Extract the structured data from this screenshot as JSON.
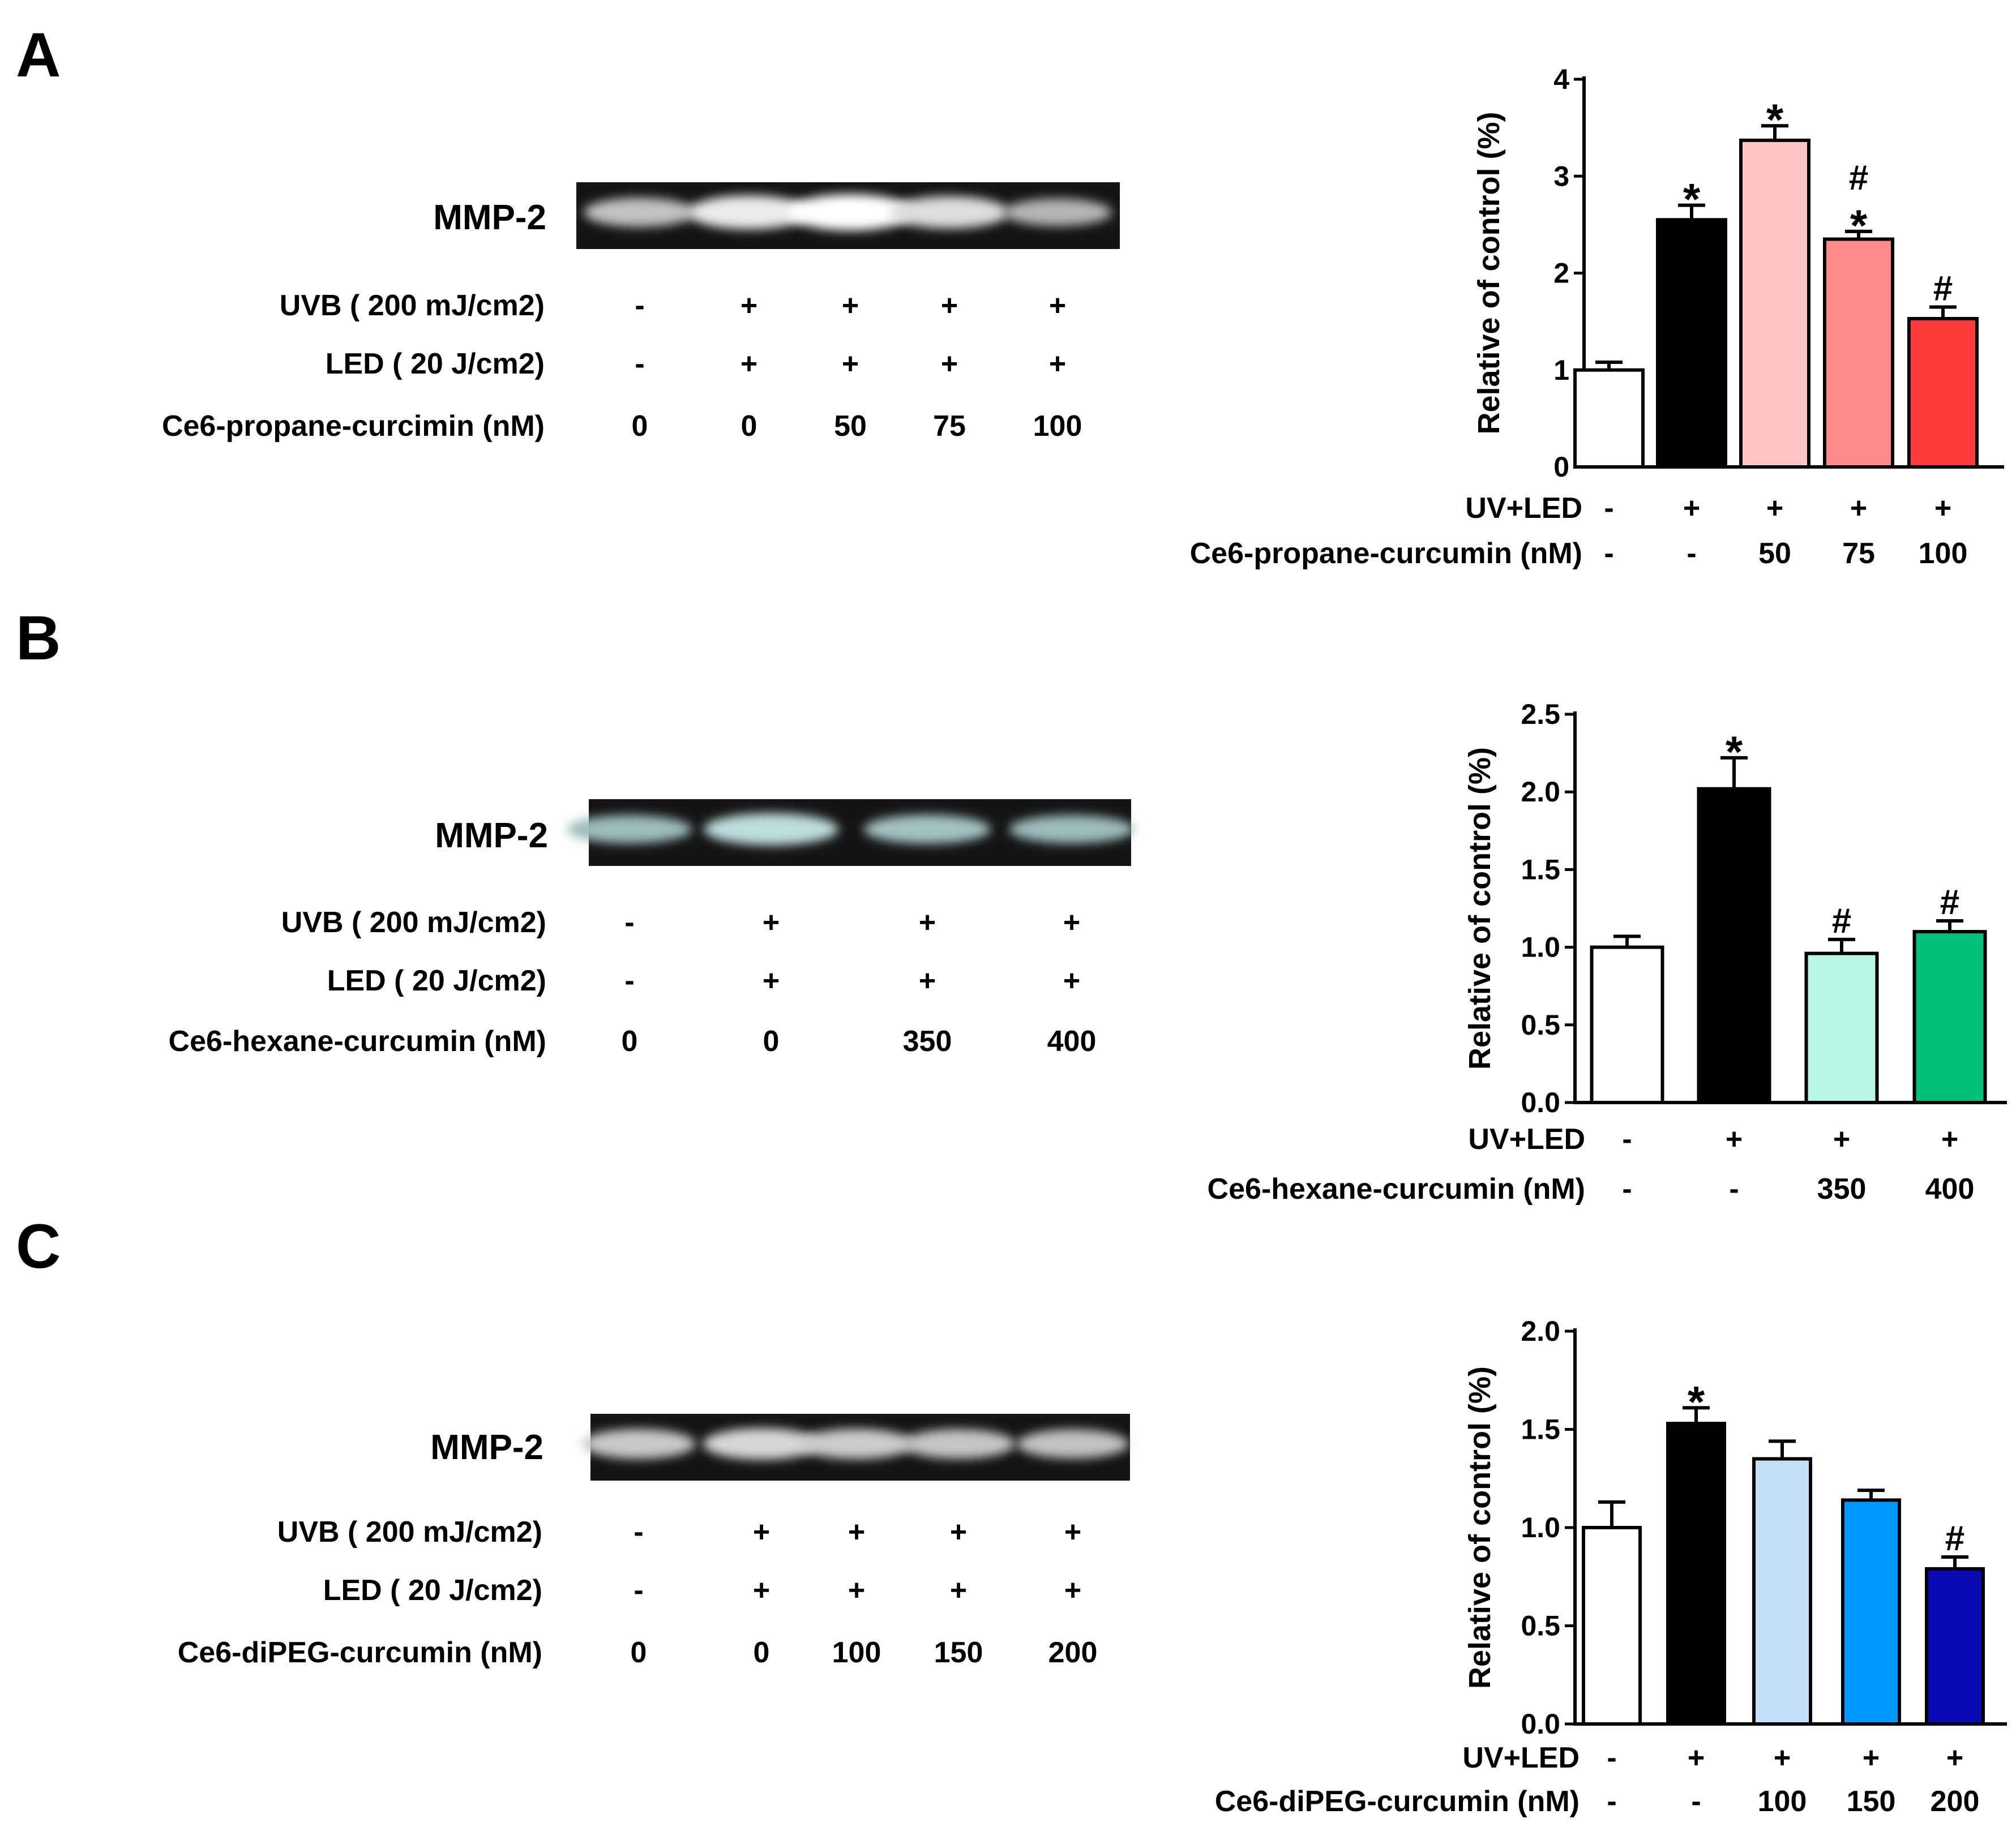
{
  "panels": [
    {
      "letter": "A",
      "gel": {
        "band_label": "MMP-2",
        "rows": [
          {
            "label": "UVB ( 200 mJ/cm2)",
            "values": [
              "-",
              "+",
              "+",
              "+",
              "+"
            ]
          },
          {
            "label": "LED ( 20 J/cm2)",
            "values": [
              "-",
              "+",
              "+",
              "+",
              "+"
            ]
          },
          {
            "label": "Ce6-propane-curcimin (nM)",
            "values": [
              "0",
              "0",
              "50",
              "75",
              "100"
            ]
          }
        ],
        "band_intensities": [
          0.55,
          0.85,
          1.0,
          0.75,
          0.45
        ]
      },
      "chart_data": {
        "type": "bar",
        "ylabel": "Relative of control (%)",
        "ylim": [
          0,
          4
        ],
        "yticks": [
          "0",
          "1",
          "2",
          "3",
          "4"
        ],
        "values": [
          1.0,
          2.55,
          3.37,
          2.35,
          1.53
        ],
        "errors": [
          0.08,
          0.15,
          0.15,
          0.08,
          0.12
        ],
        "colors": [
          "#ffffff",
          "#000000",
          "#ffc4c4",
          "#ff8a8a",
          "#ff3a3a"
        ],
        "markers": [
          [],
          [
            "*"
          ],
          [
            "*"
          ],
          [
            "*",
            "#"
          ],
          [
            "#"
          ]
        ],
        "xrows": [
          {
            "label": "UV+LED",
            "values": [
              "-",
              "+",
              "+",
              "+",
              "+"
            ]
          },
          {
            "label": "Ce6-propane-curcumin (nM)",
            "values": [
              "-",
              "-",
              "50",
              "75",
              "100"
            ]
          }
        ]
      }
    },
    {
      "letter": "B",
      "gel": {
        "band_label": "MMP-2",
        "rows": [
          {
            "label": "UVB ( 200 mJ/cm2)",
            "values": [
              "-",
              "+",
              "+",
              "+"
            ]
          },
          {
            "label": "LED ( 20 J/cm2)",
            "values": [
              "-",
              "+",
              "+",
              "+"
            ]
          },
          {
            "label": "Ce6-hexane-curcumin (nM)",
            "values": [
              "0",
              "0",
              "350",
              "400"
            ]
          }
        ],
        "band_intensities": [
          0.5,
          0.75,
          0.55,
          0.5
        ]
      },
      "chart_data": {
        "type": "bar",
        "ylabel": "Relative of control (%)",
        "ylim": [
          0,
          2.5
        ],
        "yticks": [
          "0.0",
          "0.5",
          "1.0",
          "1.5",
          "2.0",
          "2.5"
        ],
        "values": [
          1.0,
          2.02,
          0.96,
          1.1
        ],
        "errors": [
          0.07,
          0.2,
          0.09,
          0.07
        ],
        "colors": [
          "#ffffff",
          "#000000",
          "#b8f5e4",
          "#00c07a"
        ],
        "markers": [
          [],
          [
            "*"
          ],
          [
            "#"
          ],
          [
            "#"
          ]
        ],
        "xrows": [
          {
            "label": "UV+LED",
            "values": [
              "-",
              "+",
              "+",
              "+"
            ]
          },
          {
            "label": "Ce6-hexane-curcumin (nM)",
            "values": [
              "-",
              "-",
              "350",
              "400"
            ]
          }
        ]
      }
    },
    {
      "letter": "C",
      "gel": {
        "band_label": "MMP-2",
        "rows": [
          {
            "label": "UVB ( 200 mJ/cm2)",
            "values": [
              "-",
              "+",
              "+",
              "+",
              "+"
            ]
          },
          {
            "label": "LED ( 20 J/cm2)",
            "values": [
              "-",
              "+",
              "+",
              "+",
              "+"
            ]
          },
          {
            "label": "Ce6-diPEG-curcumin (nM)",
            "values": [
              "0",
              "0",
              "100",
              "150",
              "200"
            ]
          }
        ],
        "band_intensities": [
          0.6,
          0.7,
          0.62,
          0.58,
          0.55
        ]
      },
      "chart_data": {
        "type": "bar",
        "ylabel": "Relative of control (%)",
        "ylim": [
          0,
          2.0
        ],
        "yticks": [
          "0.0",
          "0.5",
          "1.0",
          "1.5",
          "2.0"
        ],
        "values": [
          1.0,
          1.53,
          1.35,
          1.14,
          0.79
        ],
        "errors": [
          0.13,
          0.08,
          0.09,
          0.05,
          0.06
        ],
        "colors": [
          "#ffffff",
          "#000000",
          "#c4dff8",
          "#0099ff",
          "#0a0ab4"
        ],
        "markers": [
          [],
          [
            "*"
          ],
          [],
          [],
          [
            "#"
          ]
        ],
        "xrows": [
          {
            "label": "UV+LED",
            "values": [
              "-",
              "+",
              "+",
              "+",
              "+"
            ]
          },
          {
            "label": "Ce6-diPEG-curcumin (nM)",
            "values": [
              "-",
              "-",
              "100",
              "150",
              "200"
            ]
          }
        ]
      }
    }
  ]
}
